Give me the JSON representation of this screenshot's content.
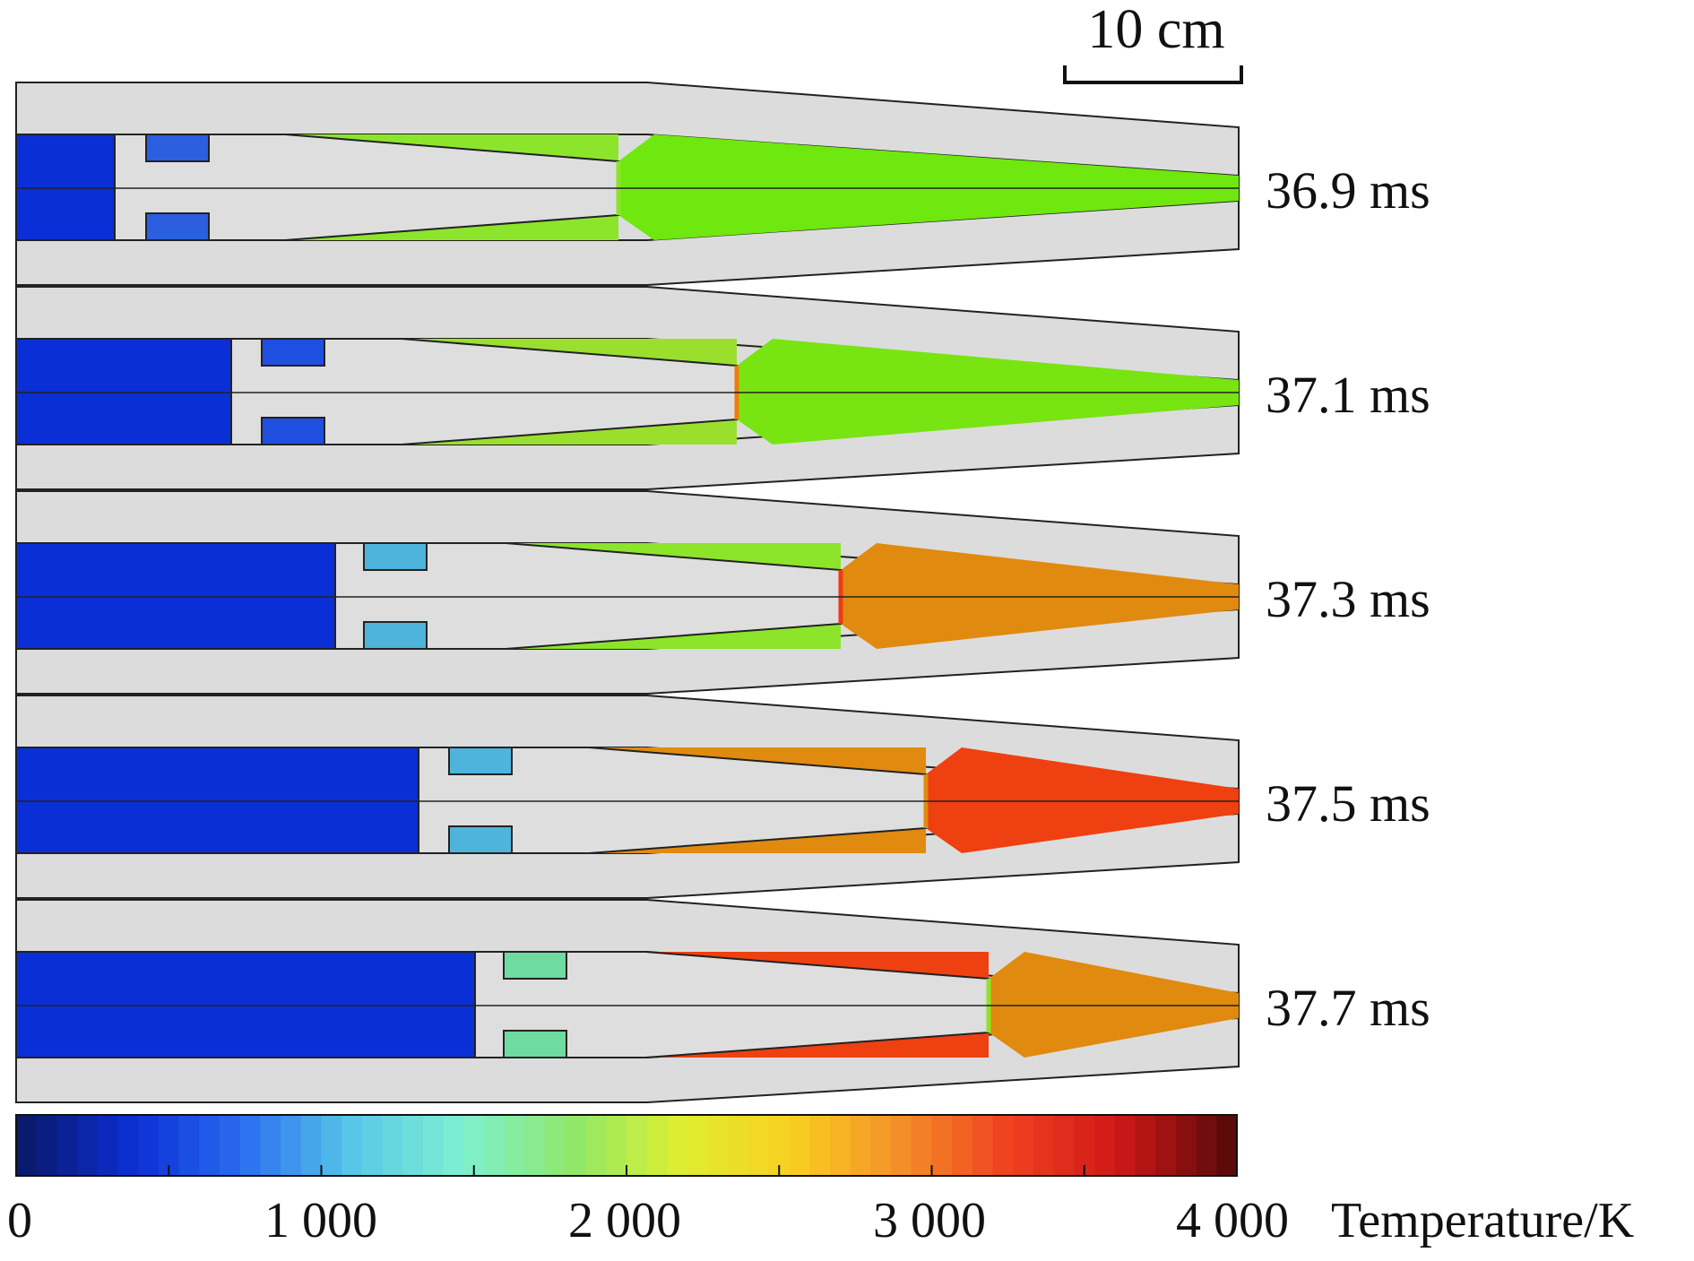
{
  "scale_bar": {
    "label": "10 cm"
  },
  "panels": [
    {
      "time_label": "36.9 ms",
      "injector_color": "#2b5fe0",
      "flame_main": "#6ee80e",
      "flame_edge": "#8ce52a",
      "accent": "#8ce52a"
    },
    {
      "time_label": "37.1 ms",
      "injector_color": "#1f4fe0",
      "flame_main": "#78e412",
      "flame_edge": "#9adf2e",
      "accent": "#f07a10"
    },
    {
      "time_label": "37.3 ms",
      "injector_color": "#4fb4dc",
      "flame_main": "#e08a10",
      "flame_edge": "#8ce52a",
      "accent": "#f03a14"
    },
    {
      "time_label": "37.5 ms",
      "injector_color": "#4fb4dc",
      "flame_main": "#ee4010",
      "flame_edge": "#e08a10",
      "accent": "#e08a10"
    },
    {
      "time_label": "37.7 ms",
      "injector_color": "#6edba0",
      "flame_main": "#e08a10",
      "flame_edge": "#ee4010",
      "accent": "#8ce52a"
    }
  ],
  "colorbar": {
    "title": "Temperature/K",
    "tick_labels": [
      "0",
      "1 000",
      "2 000",
      "3 000",
      "4 000"
    ],
    "min": 0,
    "max": 4000,
    "stops": [
      "#0a1a6e",
      "#0b2fd6",
      "#2c6ef0",
      "#58c8e8",
      "#7ef0d0",
      "#8ee86a",
      "#dfee30",
      "#f8d020",
      "#f49028",
      "#f04020",
      "#d01818",
      "#5e0a0a"
    ]
  }
}
